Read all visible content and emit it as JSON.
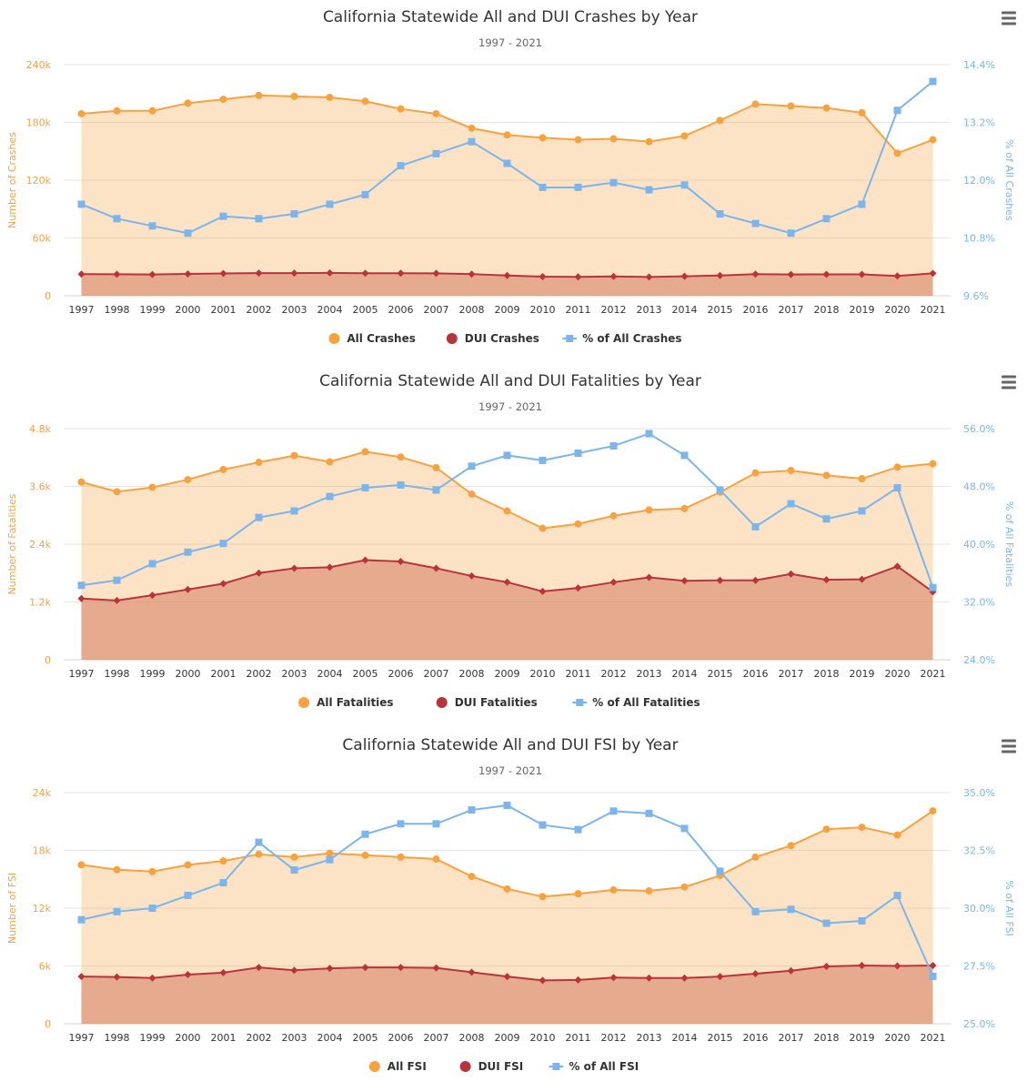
{
  "chart_data": [
    {
      "type": "area",
      "title": "California Statewide All and DUI Crashes by Year",
      "subtitle": "1997 - 2021",
      "x": [
        "1997",
        "1998",
        "1999",
        "2000",
        "2001",
        "2002",
        "2003",
        "2004",
        "2005",
        "2006",
        "2007",
        "2008",
        "2009",
        "2010",
        "2011",
        "2012",
        "2013",
        "2014",
        "2015",
        "2016",
        "2017",
        "2018",
        "2019",
        "2020",
        "2021"
      ],
      "y_left": {
        "label": "Number of Crashes",
        "min": 0,
        "max": 240000,
        "ticks": [
          "0",
          "60k",
          "120k",
          "180k",
          "240k"
        ]
      },
      "y_right": {
        "label": "% of All Crashes",
        "min": 9.6,
        "max": 14.4,
        "ticks": [
          "9.6%",
          "10.8%",
          "12.0%",
          "13.2%",
          "14.4%"
        ]
      },
      "series": [
        {
          "name": "All Crashes",
          "axis": "left",
          "color": "#f7a23f",
          "values": [
            189000,
            192000,
            192000,
            200000,
            204000,
            208000,
            207000,
            206000,
            202000,
            194000,
            189000,
            174000,
            167000,
            164000,
            162000,
            163000,
            160000,
            166000,
            182000,
            199000,
            197000,
            195000,
            190000,
            148000,
            162000
          ]
        },
        {
          "name": "DUI Crashes",
          "axis": "left",
          "color": "#b8343a",
          "values": [
            22500,
            22300,
            22100,
            22700,
            23200,
            23500,
            23500,
            23700,
            23400,
            23400,
            23300,
            22500,
            21000,
            19800,
            19600,
            20100,
            19500,
            20200,
            21000,
            22400,
            22100,
            22200,
            22200,
            20600,
            23300
          ]
        },
        {
          "name": "% of All Crashes",
          "axis": "right",
          "color": "#7cb5ec",
          "values": [
            11.5,
            11.2,
            11.05,
            10.9,
            11.25,
            11.2,
            11.3,
            11.5,
            11.7,
            12.3,
            12.55,
            12.8,
            12.35,
            11.85,
            11.85,
            11.95,
            11.8,
            11.9,
            11.3,
            11.1,
            10.9,
            11.2,
            11.5,
            13.45,
            14.05
          ]
        }
      ]
    },
    {
      "type": "area",
      "title": "California Statewide All and DUI Fatalities by Year",
      "subtitle": "1997 - 2021",
      "x": [
        "1997",
        "1998",
        "1999",
        "2000",
        "2001",
        "2002",
        "2003",
        "2004",
        "2005",
        "2006",
        "2007",
        "2008",
        "2009",
        "2010",
        "2011",
        "2012",
        "2013",
        "2014",
        "2015",
        "2016",
        "2017",
        "2018",
        "2019",
        "2020",
        "2021"
      ],
      "y_left": {
        "label": "Number of Fatalities",
        "min": 0,
        "max": 4800,
        "ticks": [
          "0",
          "1.2k",
          "2.4k",
          "3.6k",
          "4.8k"
        ]
      },
      "y_right": {
        "label": "% of All Fatalities",
        "min": 24,
        "max": 56,
        "ticks": [
          "24.0%",
          "32.0%",
          "40.0%",
          "48.0%",
          "56.0%"
        ]
      },
      "series": [
        {
          "name": "All Fatalities",
          "axis": "left",
          "color": "#f7a23f",
          "values": [
            3690,
            3490,
            3580,
            3740,
            3950,
            4100,
            4240,
            4110,
            4320,
            4210,
            3990,
            3440,
            3090,
            2730,
            2820,
            2990,
            3110,
            3140,
            3480,
            3880,
            3930,
            3830,
            3760,
            4000,
            4070
          ]
        },
        {
          "name": "DUI Fatalities",
          "axis": "left",
          "color": "#b8343a",
          "values": [
            1270,
            1230,
            1340,
            1460,
            1580,
            1800,
            1900,
            1920,
            2070,
            2040,
            1900,
            1740,
            1610,
            1420,
            1490,
            1610,
            1710,
            1640,
            1650,
            1650,
            1780,
            1660,
            1670,
            1940,
            1410
          ]
        },
        {
          "name": "% of All Fatalities",
          "axis": "right",
          "color": "#7cb5ec",
          "values": [
            34.3,
            35.0,
            37.3,
            38.9,
            40.1,
            43.7,
            44.6,
            46.6,
            47.8,
            48.2,
            47.5,
            50.8,
            52.3,
            51.6,
            52.6,
            53.6,
            55.3,
            52.3,
            47.5,
            42.4,
            45.6,
            43.5,
            44.6,
            47.8,
            34.0
          ]
        }
      ]
    },
    {
      "type": "area",
      "title": "California Statewide All and DUI FSI by Year",
      "subtitle": "1997 - 2021",
      "x": [
        "1997",
        "1998",
        "1999",
        "2000",
        "2001",
        "2002",
        "2003",
        "2004",
        "2005",
        "2006",
        "2007",
        "2008",
        "2009",
        "2010",
        "2011",
        "2012",
        "2013",
        "2014",
        "2015",
        "2016",
        "2017",
        "2018",
        "2019",
        "2020",
        "2021"
      ],
      "y_left": {
        "label": "Number of FSI",
        "min": 0,
        "max": 24000,
        "ticks": [
          "0",
          "6k",
          "12k",
          "18k",
          "24k"
        ]
      },
      "y_right": {
        "label": "% of All FSI",
        "min": 25,
        "max": 35,
        "ticks": [
          "25.0%",
          "27.5%",
          "30.0%",
          "32.5%",
          "35.0%"
        ]
      },
      "series": [
        {
          "name": "All FSI",
          "axis": "left",
          "color": "#f7a23f",
          "values": [
            16500,
            16000,
            15800,
            16500,
            16900,
            17600,
            17300,
            17700,
            17500,
            17300,
            17100,
            15300,
            14000,
            13200,
            13500,
            13900,
            13800,
            14200,
            15400,
            17300,
            18500,
            20200,
            20400,
            19600,
            22100
          ]
        },
        {
          "name": "DUI FSI",
          "axis": "left",
          "color": "#b8343a",
          "values": [
            4900,
            4850,
            4750,
            5100,
            5300,
            5850,
            5550,
            5750,
            5850,
            5850,
            5800,
            5350,
            4900,
            4500,
            4550,
            4800,
            4750,
            4750,
            4900,
            5200,
            5500,
            5950,
            6050,
            6000,
            6050
          ]
        },
        {
          "name": "% of All FSI",
          "axis": "right",
          "color": "#7cb5ec",
          "values": [
            29.5,
            29.85,
            30.0,
            30.55,
            31.1,
            32.85,
            31.65,
            32.1,
            33.2,
            33.65,
            33.65,
            34.25,
            34.45,
            33.6,
            33.4,
            34.2,
            34.1,
            33.45,
            31.6,
            29.85,
            29.95,
            29.35,
            29.45,
            30.55,
            27.05
          ]
        }
      ]
    }
  ]
}
